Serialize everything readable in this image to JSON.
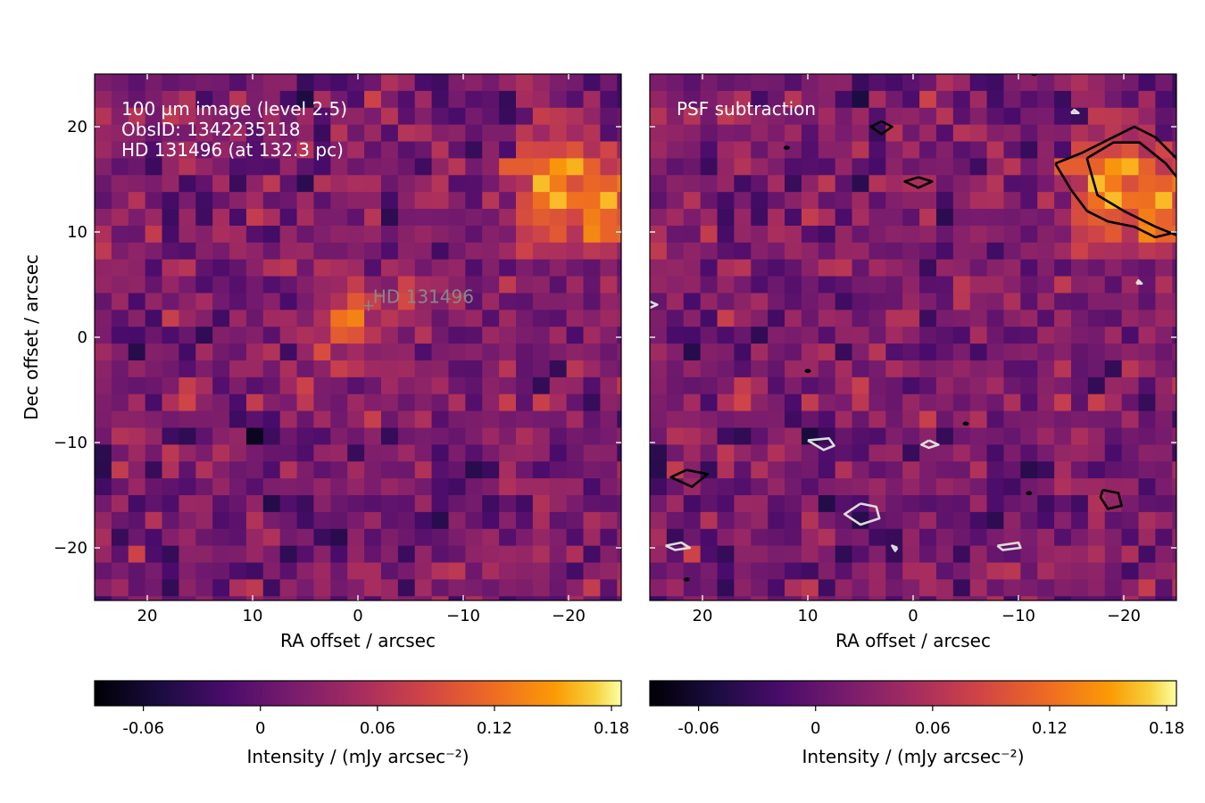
{
  "chart_data": [
    {
      "type": "heatmap",
      "panel": "left",
      "annotation_lines": [
        "100 µm image (level 2.5)",
        "ObsID: 1342235118",
        "HD 131496 (at 132.3 pc)"
      ],
      "star_label": "HD 131496",
      "star_position": {
        "x": -1.0,
        "y": 3.0
      },
      "xlabel": "RA offset / arcsec",
      "ylabel": "Dec offset / arcsec",
      "xlim": [
        25,
        -25
      ],
      "ylim": [
        -25,
        25
      ],
      "xticks": [
        20,
        10,
        0,
        -10,
        -20
      ],
      "xtick_labels": [
        "20",
        "10",
        "0",
        "−10",
        "−20"
      ],
      "yticks": [
        20,
        10,
        0,
        -10,
        -20
      ],
      "ytick_labels": [
        "20",
        "10",
        "0",
        "−10",
        "−20"
      ],
      "colormap": "inferno",
      "color_range": [
        -0.085,
        0.185
      ],
      "pixel_size_arcsec": 1.6,
      "sources": [
        {
          "x": 0,
          "y": 1.5,
          "amp": 0.075,
          "sigma": 3.2
        },
        {
          "x": -19,
          "y": 14,
          "amp": 0.13,
          "sigma": 3.5
        },
        {
          "x": -24,
          "y": 12,
          "amp": 0.08,
          "sigma": 2.2
        }
      ],
      "cold_spots": [
        {
          "x": 5,
          "y": -16,
          "amp": -0.07
        },
        {
          "x": 9,
          "y": -9.5,
          "amp": -0.05
        },
        {
          "x": -14,
          "y": 21,
          "amp": -0.05
        },
        {
          "x": 2,
          "y": -19.5,
          "amp": -0.05
        },
        {
          "x": -9,
          "y": -19.5,
          "amp": -0.04
        }
      ],
      "colorbar": {
        "label": "Intensity / (mJy arcsec⁻²)",
        "ticks": [
          -0.06,
          0,
          0.06,
          0.12,
          0.18
        ],
        "tick_labels": [
          "-0.06",
          "0",
          "0.06",
          "0.12",
          "0.18"
        ]
      }
    },
    {
      "type": "heatmap",
      "panel": "right",
      "annotation_lines": [
        "PSF subtraction"
      ],
      "xlabel": "RA offset / arcsec",
      "xlim": [
        25,
        -25
      ],
      "ylim": [
        -25,
        25
      ],
      "xticks": [
        20,
        10,
        0,
        -10,
        -20
      ],
      "xtick_labels": [
        "20",
        "10",
        "0",
        "−10",
        "−20"
      ],
      "colormap": "inferno",
      "color_range": [
        -0.085,
        0.185
      ],
      "pixel_size_arcsec": 1.6,
      "sources": [
        {
          "x": -19,
          "y": 14,
          "amp": 0.13,
          "sigma": 3.5
        },
        {
          "x": -24,
          "y": 12,
          "amp": 0.08,
          "sigma": 2.2
        }
      ],
      "cold_spots": [
        {
          "x": 5,
          "y": -16.5,
          "amp": -0.07
        },
        {
          "x": 8.5,
          "y": -10,
          "amp": -0.05
        },
        {
          "x": -15,
          "y": 21,
          "amp": -0.05
        },
        {
          "x": 2,
          "y": -20,
          "amp": -0.05
        },
        {
          "x": -10,
          "y": -20,
          "amp": -0.04
        }
      ],
      "contours_positive": [
        [
          [
            -13.5,
            16.5
          ],
          [
            -16,
            17.5
          ],
          [
            -19,
            19
          ],
          [
            -21,
            20
          ],
          [
            -23,
            19
          ],
          [
            -25,
            17
          ],
          [
            -26,
            13
          ],
          [
            -25,
            10
          ],
          [
            -23,
            9.5
          ],
          [
            -21,
            10.5
          ],
          [
            -18.5,
            11
          ],
          [
            -16.5,
            12
          ],
          [
            -15,
            14
          ],
          [
            -13.5,
            16.5
          ]
        ],
        [
          [
            -16.5,
            17
          ],
          [
            -19,
            18.5
          ],
          [
            -21.5,
            18.5
          ],
          [
            -24,
            16.5
          ],
          [
            -26,
            14
          ],
          [
            -25.5,
            9.5
          ],
          [
            -23,
            10.5
          ],
          [
            -20,
            12
          ],
          [
            -17.5,
            13.5
          ],
          [
            -16.5,
            17
          ]
        ],
        [
          [
            3,
            20.5
          ],
          [
            4,
            20
          ],
          [
            3,
            19.3
          ],
          [
            2,
            20
          ],
          [
            3,
            20.5
          ]
        ],
        [
          [
            -0.5,
            15.2
          ],
          [
            0.8,
            14.8
          ],
          [
            -0.5,
            14.2
          ],
          [
            -1.8,
            14.8
          ],
          [
            -0.5,
            15.2
          ]
        ],
        [
          [
            21.5,
            -12.6
          ],
          [
            19.5,
            -13
          ],
          [
            21,
            -14.2
          ],
          [
            23,
            -13.3
          ],
          [
            21.5,
            -12.6
          ]
        ],
        [
          [
            -18,
            -14.5
          ],
          [
            -19.5,
            -14.8
          ],
          [
            -19.8,
            -16
          ],
          [
            -18.5,
            -16.3
          ],
          [
            -17.8,
            -15.2
          ],
          [
            -18,
            -14.5
          ]
        ]
      ],
      "contours_negative": [
        [
          [
            5,
            -15.8
          ],
          [
            6.5,
            -16.8
          ],
          [
            5,
            -17.8
          ],
          [
            3.2,
            -17.2
          ],
          [
            3.5,
            -16.1
          ],
          [
            5,
            -15.8
          ]
        ],
        [
          [
            10,
            -9.8
          ],
          [
            8,
            -9.6
          ],
          [
            7.5,
            -10.3
          ],
          [
            8.5,
            -10.7
          ],
          [
            10,
            -9.8
          ]
        ],
        [
          [
            -1.5,
            -9.8
          ],
          [
            -2.4,
            -10.2
          ],
          [
            -1.5,
            -10.5
          ],
          [
            -0.8,
            -10.2
          ],
          [
            -1.5,
            -9.8
          ]
        ],
        [
          [
            23.5,
            -19.8
          ],
          [
            22,
            -19.5
          ],
          [
            21.2,
            -20
          ],
          [
            22.6,
            -20.2
          ],
          [
            23.5,
            -19.8
          ]
        ],
        [
          [
            -8,
            -19.8
          ],
          [
            -10,
            -19.5
          ],
          [
            -10.2,
            -20
          ],
          [
            -8.5,
            -20.2
          ],
          [
            -8,
            -19.8
          ]
        ],
        [
          [
            1.5,
            -20
          ],
          [
            2,
            -19.8
          ],
          [
            1.7,
            -20.3
          ],
          [
            1.5,
            -20
          ]
        ],
        [
          [
            -15,
            21.3
          ],
          [
            -15.7,
            21.3
          ],
          [
            -15.3,
            21.6
          ],
          [
            -15,
            21.3
          ]
        ],
        [
          [
            -21.2,
            5.1
          ],
          [
            -21.7,
            5.1
          ],
          [
            -21.4,
            5.4
          ],
          [
            -21.2,
            5.1
          ]
        ],
        [
          [
            25,
            3.4
          ],
          [
            24.3,
            3.1
          ],
          [
            25,
            2.8
          ]
        ]
      ],
      "contours_dots": [
        [
          12,
          18
        ],
        [
          10,
          -3.2
        ],
        [
          -5,
          -8.2
        ],
        [
          -11,
          -14.8
        ],
        [
          21.5,
          -23
        ],
        [
          -11.5,
          25
        ]
      ],
      "colorbar": {
        "label": "Intensity / (mJy arcsec⁻²)",
        "ticks": [
          -0.06,
          0,
          0.06,
          0.12,
          0.18
        ],
        "tick_labels": [
          "-0.06",
          "0",
          "0.06",
          "0.12",
          "0.18"
        ]
      }
    }
  ]
}
